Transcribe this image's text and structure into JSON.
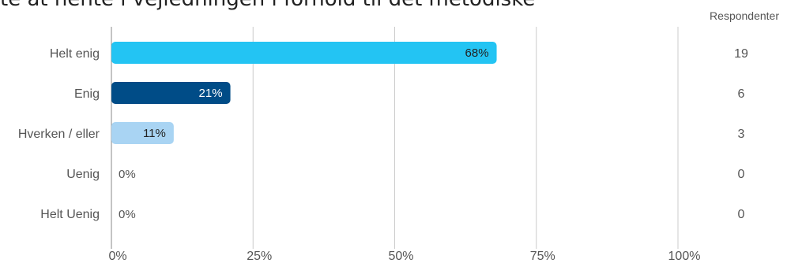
{
  "title": "te at hente i vejledningen i forhold til det metodiske",
  "respondents_header": "Respondenter",
  "chart_data": {
    "type": "bar",
    "orientation": "horizontal",
    "categories": [
      "Helt enig",
      "Enig",
      "Hverken / eller",
      "Uenig",
      "Helt Uenig"
    ],
    "values": [
      68,
      21,
      11,
      0,
      0
    ],
    "value_labels": [
      "68%",
      "21%",
      "11%",
      "0%",
      "0%"
    ],
    "respondents": [
      19,
      6,
      3,
      0,
      0
    ],
    "colors": [
      "#23c4f3",
      "#004c87",
      "#a9d4f3",
      "#dddddd",
      "#dddddd"
    ],
    "label_colors": [
      "#222222",
      "#ffffff",
      "#222222",
      "#555555",
      "#555555"
    ],
    "xlim": [
      0,
      100
    ],
    "xticks": [
      "0%",
      "25%",
      "50%",
      "75%",
      "100%"
    ],
    "grid": true
  }
}
